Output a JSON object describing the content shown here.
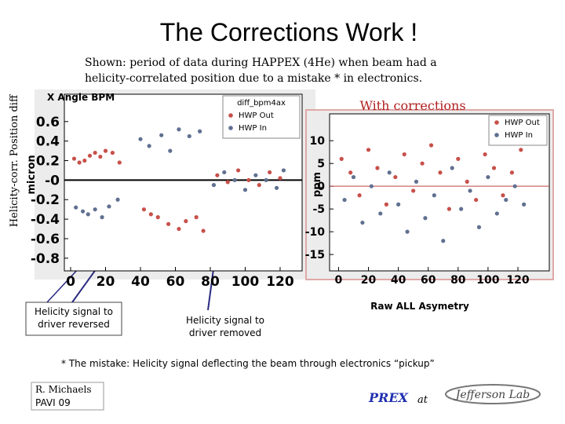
{
  "slide": {
    "title": "The Corrections Work !",
    "intro": [
      "Shown: period of data during HAPPEX (4He) when beam had a",
      "helicity-correlated position due to a mistake * in electronics."
    ],
    "side_label": "Helicity-corr. Position diff",
    "callouts": [
      {
        "lines": [
          "Helicity signal to",
          "driver reversed"
        ]
      },
      {
        "lines": [
          "Helicity signal to",
          "driver removed"
        ]
      }
    ],
    "caption": "Raw ALL Asymetry",
    "footnote": "* The mistake: Helicity signal deflecting the beam through electronics “pickup”",
    "author": "R. Michaels",
    "venue": "PAVI 09",
    "experiment": "PREX",
    "at": "at",
    "logo": "Jefferson Lab"
  },
  "chart_data": [
    {
      "type": "scatter",
      "title": "X Angle BPM",
      "legend_title": "diff_bpm4ax",
      "y_label": "micron",
      "xlim": [
        -3.6,
        132.6
      ],
      "ylim": [
        -0.93,
        0.88
      ],
      "xticks": [
        0,
        20,
        40,
        60,
        80,
        100,
        120
      ],
      "yticks": [
        -0.8,
        -0.6,
        -0.4,
        -0.2,
        {
          "value": 0,
          "label": "-0"
        },
        0.2,
        0.4,
        0.6
      ],
      "legend": "upper right",
      "series": [
        {
          "name": "HWP Out",
          "color": "#c8504a",
          "x": [
            2,
            5,
            8,
            11,
            14,
            17,
            20,
            24,
            28,
            42,
            46,
            50,
            56,
            62,
            66,
            72,
            76,
            84,
            90,
            96,
            102,
            108,
            114,
            120
          ],
          "values": [
            0.22,
            0.18,
            0.2,
            0.25,
            0.28,
            0.24,
            0.3,
            0.28,
            0.18,
            -0.3,
            -0.35,
            -0.38,
            -0.45,
            -0.5,
            -0.42,
            -0.38,
            -0.52,
            0.05,
            -0.02,
            0.1,
            0.0,
            -0.05,
            0.08,
            0.02
          ]
        },
        {
          "name": "HWP In",
          "color": "#607090",
          "x": [
            3,
            7,
            10,
            14,
            18,
            22,
            27,
            40,
            45,
            52,
            57,
            62,
            68,
            74,
            82,
            88,
            94,
            100,
            106,
            112,
            118,
            122
          ],
          "values": [
            -0.28,
            -0.32,
            -0.35,
            -0.3,
            -0.38,
            -0.27,
            -0.2,
            0.42,
            0.35,
            0.46,
            0.3,
            0.52,
            0.45,
            0.5,
            -0.05,
            0.08,
            0.0,
            -0.1,
            0.05,
            0.0,
            -0.08,
            0.1
          ]
        }
      ]
    },
    {
      "type": "scatter",
      "title": "With corrections",
      "y_label": "ppm",
      "xlim": [
        -6,
        141
      ],
      "ylim": [
        -18.6,
        15.9
      ],
      "xticks": [
        0,
        20,
        40,
        60,
        80,
        100,
        120
      ],
      "yticks": [
        -15,
        -10,
        -5,
        0,
        5,
        10
      ],
      "legend": "upper right",
      "series": [
        {
          "name": "HWP Out",
          "color": "#c8504a",
          "x": [
            2,
            8,
            14,
            20,
            26,
            32,
            38,
            44,
            50,
            56,
            62,
            68,
            74,
            80,
            86,
            92,
            98,
            104,
            110,
            116,
            122
          ],
          "values": [
            6,
            3,
            -2,
            8,
            4,
            -4,
            2,
            7,
            -1,
            5,
            9,
            3,
            -5,
            6,
            1,
            -3,
            7,
            4,
            -2,
            3,
            8
          ]
        },
        {
          "name": "HWP In",
          "color": "#607090",
          "x": [
            4,
            10,
            16,
            22,
            28,
            34,
            40,
            46,
            52,
            58,
            64,
            70,
            76,
            82,
            88,
            94,
            100,
            106,
            112,
            118,
            124
          ],
          "values": [
            -3,
            2,
            -8,
            0,
            -6,
            3,
            -4,
            -10,
            1,
            -7,
            -2,
            -12,
            4,
            -5,
            -1,
            -9,
            2,
            -6,
            -3,
            0,
            -4
          ]
        }
      ]
    }
  ]
}
